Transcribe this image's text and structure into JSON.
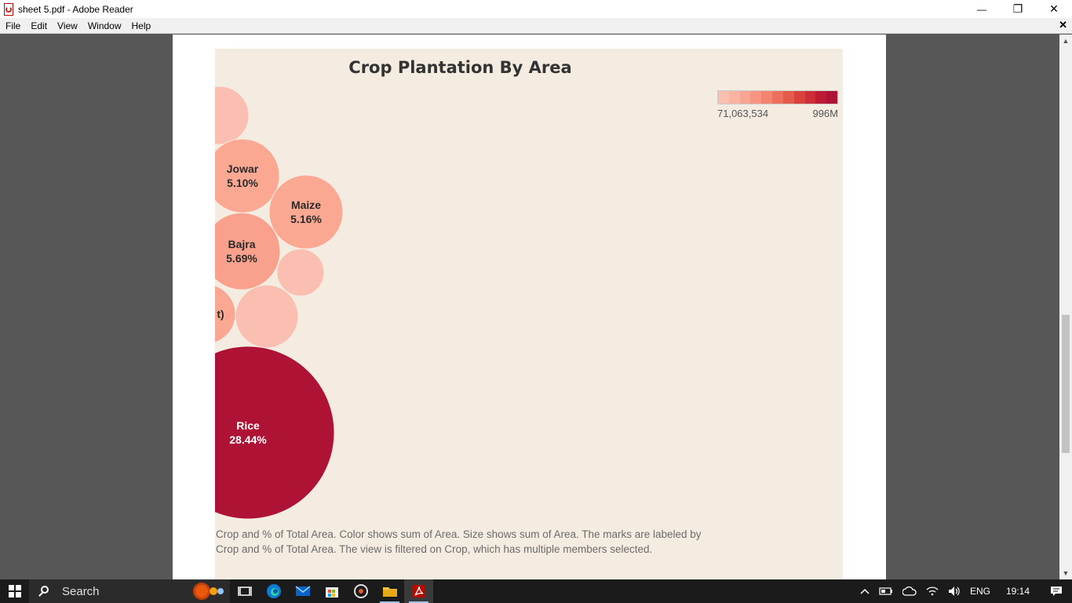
{
  "window": {
    "title": "sheet 5.pdf - Adobe Reader",
    "minimize": "—",
    "maximize": "❐",
    "close": "✕"
  },
  "menu": {
    "items": [
      "File",
      "Edit",
      "View",
      "Window",
      "Help"
    ],
    "close_doc": "✕"
  },
  "chart_data": {
    "type": "bubble",
    "title": "Crop Plantation By Area",
    "legend": {
      "type": "color-gradient",
      "min_label": "71,063,534",
      "max_label": "996M",
      "colors": [
        "#fbbfb1",
        "#fbb3a3",
        "#f9a593",
        "#f69582",
        "#f28470",
        "#ec705d",
        "#e45a4b",
        "#d9423c",
        "#cc2d36",
        "#bd1b35",
        "#ae1234"
      ]
    },
    "bubbles": [
      {
        "label": "",
        "percent": "",
        "color": "#fbbfb1"
      },
      {
        "label": "Jowar",
        "percent": "5.10%",
        "color": "#fba893"
      },
      {
        "label": "Maize",
        "percent": "5.16%",
        "color": "#fba893"
      },
      {
        "label": "Bajra",
        "percent": "5.69%",
        "color": "#f9a18c"
      },
      {
        "label": "",
        "percent": "",
        "color": "#fbbfb1"
      },
      {
        "label": "t)",
        "percent": "",
        "color": "#fba893"
      },
      {
        "label": "",
        "percent": "",
        "color": "#fbbfb1"
      },
      {
        "label": "Rice",
        "percent": "28.44%",
        "color": "#ae1234"
      }
    ],
    "caption": "Crop and % of Total Area.  Color shows sum of Area.  Size shows sum of Area.  The marks are labeled by Crop and % of Total Area. The view is filtered on Crop, which has multiple members selected."
  },
  "taskbar": {
    "search_placeholder": "Search",
    "language": "ENG",
    "time": "19:14"
  },
  "colors": {
    "dashboard_bg": "#f5ece1",
    "viewer_bg": "#575757",
    "taskbar_bg": "#1b1b1b"
  }
}
